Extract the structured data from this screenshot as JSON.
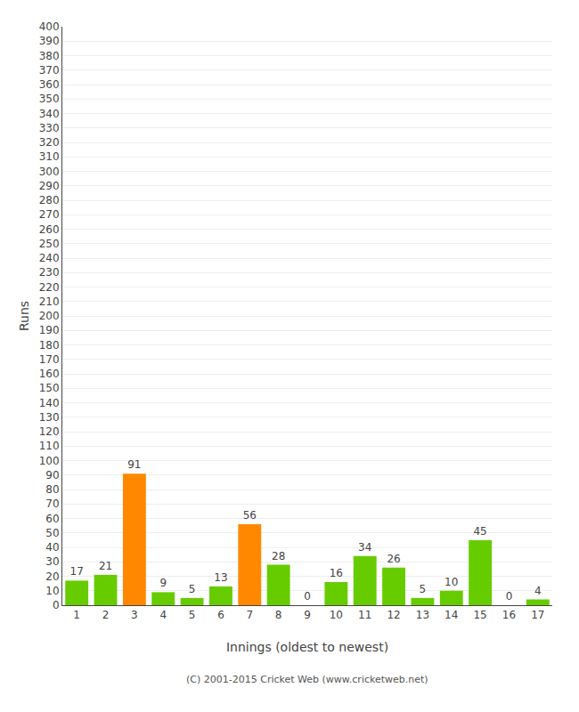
{
  "chart_data": {
    "type": "bar",
    "xlabel": "Innings (oldest to newest)",
    "ylabel": "Runs",
    "categories": [
      "1",
      "2",
      "3",
      "4",
      "5",
      "6",
      "7",
      "8",
      "9",
      "10",
      "11",
      "12",
      "13",
      "14",
      "15",
      "16",
      "17"
    ],
    "values": [
      17,
      21,
      91,
      9,
      5,
      13,
      56,
      28,
      0,
      16,
      34,
      26,
      5,
      10,
      45,
      0,
      4
    ],
    "colors": [
      "#66cc00",
      "#66cc00",
      "#ff8800",
      "#66cc00",
      "#66cc00",
      "#66cc00",
      "#ff8800",
      "#66cc00",
      "#66cc00",
      "#66cc00",
      "#66cc00",
      "#66cc00",
      "#66cc00",
      "#66cc00",
      "#66cc00",
      "#66cc00",
      "#66cc00"
    ],
    "ylim": [
      0,
      400
    ],
    "yticks": [
      0,
      10,
      20,
      30,
      40,
      50,
      60,
      70,
      80,
      90,
      100,
      110,
      120,
      130,
      140,
      150,
      160,
      170,
      180,
      190,
      200,
      210,
      220,
      230,
      240,
      250,
      260,
      270,
      280,
      290,
      300,
      310,
      320,
      330,
      340,
      350,
      360,
      370,
      380,
      390,
      400
    ],
    "grid": true,
    "data_labels": true,
    "annotations": [
      "(C) 2001-2015 Cricket Web (www.cricketweb.net)"
    ]
  }
}
